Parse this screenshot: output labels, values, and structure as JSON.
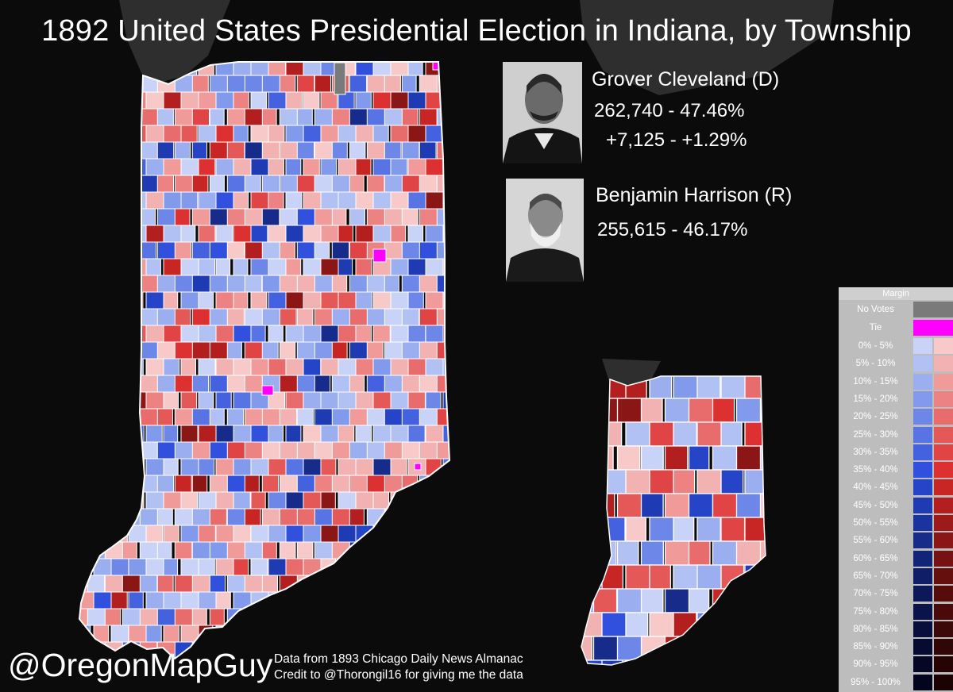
{
  "title": "1892 United States Presidential Election in Indiana, by Township",
  "candidates": [
    {
      "name": "Grover Cleveland (D)",
      "votes_pct": "262,740 - 47.46%",
      "margin": "+7,125 - +1.29%",
      "photo_icon": "portrait-photo-icon",
      "color": "#3a5fd9"
    },
    {
      "name": "Benjamin Harrison (R)",
      "votes_pct": "255,615 - 46.17%",
      "photo_icon": "portrait-photo-icon",
      "color": "#d93a3a"
    }
  ],
  "footer": {
    "handle": "@OregonMapGuy",
    "source": "Data from 1893 Chicago Daily News Almanac",
    "credit": "Credit to @Thorongil16 for giving me the data"
  },
  "legend": {
    "title": "Margin",
    "no_votes": {
      "label": "No Votes",
      "color": "#7a7a7a"
    },
    "tie": {
      "label": "Tie",
      "color": "#ff00ff"
    },
    "bins": [
      {
        "label": "0% - 5%",
        "dem": "#c9d3f7",
        "rep": "#f7c9c9"
      },
      {
        "label": "5% - 10%",
        "dem": "#b2c1f3",
        "rep": "#f3b2b2"
      },
      {
        "label": "10% - 15%",
        "dem": "#9aaef0",
        "rep": "#f09a9a"
      },
      {
        "label": "15% - 20%",
        "dem": "#829aec",
        "rep": "#ec8282"
      },
      {
        "label": "20% - 25%",
        "dem": "#6c87e8",
        "rep": "#e86c6c"
      },
      {
        "label": "25% - 30%",
        "dem": "#5874e4",
        "rep": "#e45858"
      },
      {
        "label": "30% - 35%",
        "dem": "#4462e0",
        "rep": "#e04444"
      },
      {
        "label": "35% - 40%",
        "dem": "#3050dd",
        "rep": "#dd3030"
      },
      {
        "label": "40% - 45%",
        "dem": "#2544c8",
        "rep": "#c82525"
      },
      {
        "label": "45% - 50%",
        "dem": "#1f3bb3",
        "rep": "#b31f1f"
      },
      {
        "label": "50% - 55%",
        "dem": "#1a339e",
        "rep": "#9e1a1a"
      },
      {
        "label": "55% - 60%",
        "dem": "#162b8a",
        "rep": "#8a1616"
      },
      {
        "label": "60% - 65%",
        "dem": "#122477",
        "rep": "#771212"
      },
      {
        "label": "65% - 70%",
        "dem": "#0f1e66",
        "rep": "#660f0f"
      },
      {
        "label": "70% - 75%",
        "dem": "#0c1857",
        "rep": "#570c0c"
      },
      {
        "label": "75% - 80%",
        "dem": "#0a134a",
        "rep": "#4a0a0a"
      },
      {
        "label": "80% - 85%",
        "dem": "#080f3d",
        "rep": "#3d0808"
      },
      {
        "label": "85% - 90%",
        "dem": "#060b31",
        "rep": "#310606"
      },
      {
        "label": "90% - 95%",
        "dem": "#040826",
        "rep": "#260404"
      },
      {
        "label": "95% - 100%",
        "dem": "#03051c",
        "rep": "#1c0303"
      }
    ]
  }
}
